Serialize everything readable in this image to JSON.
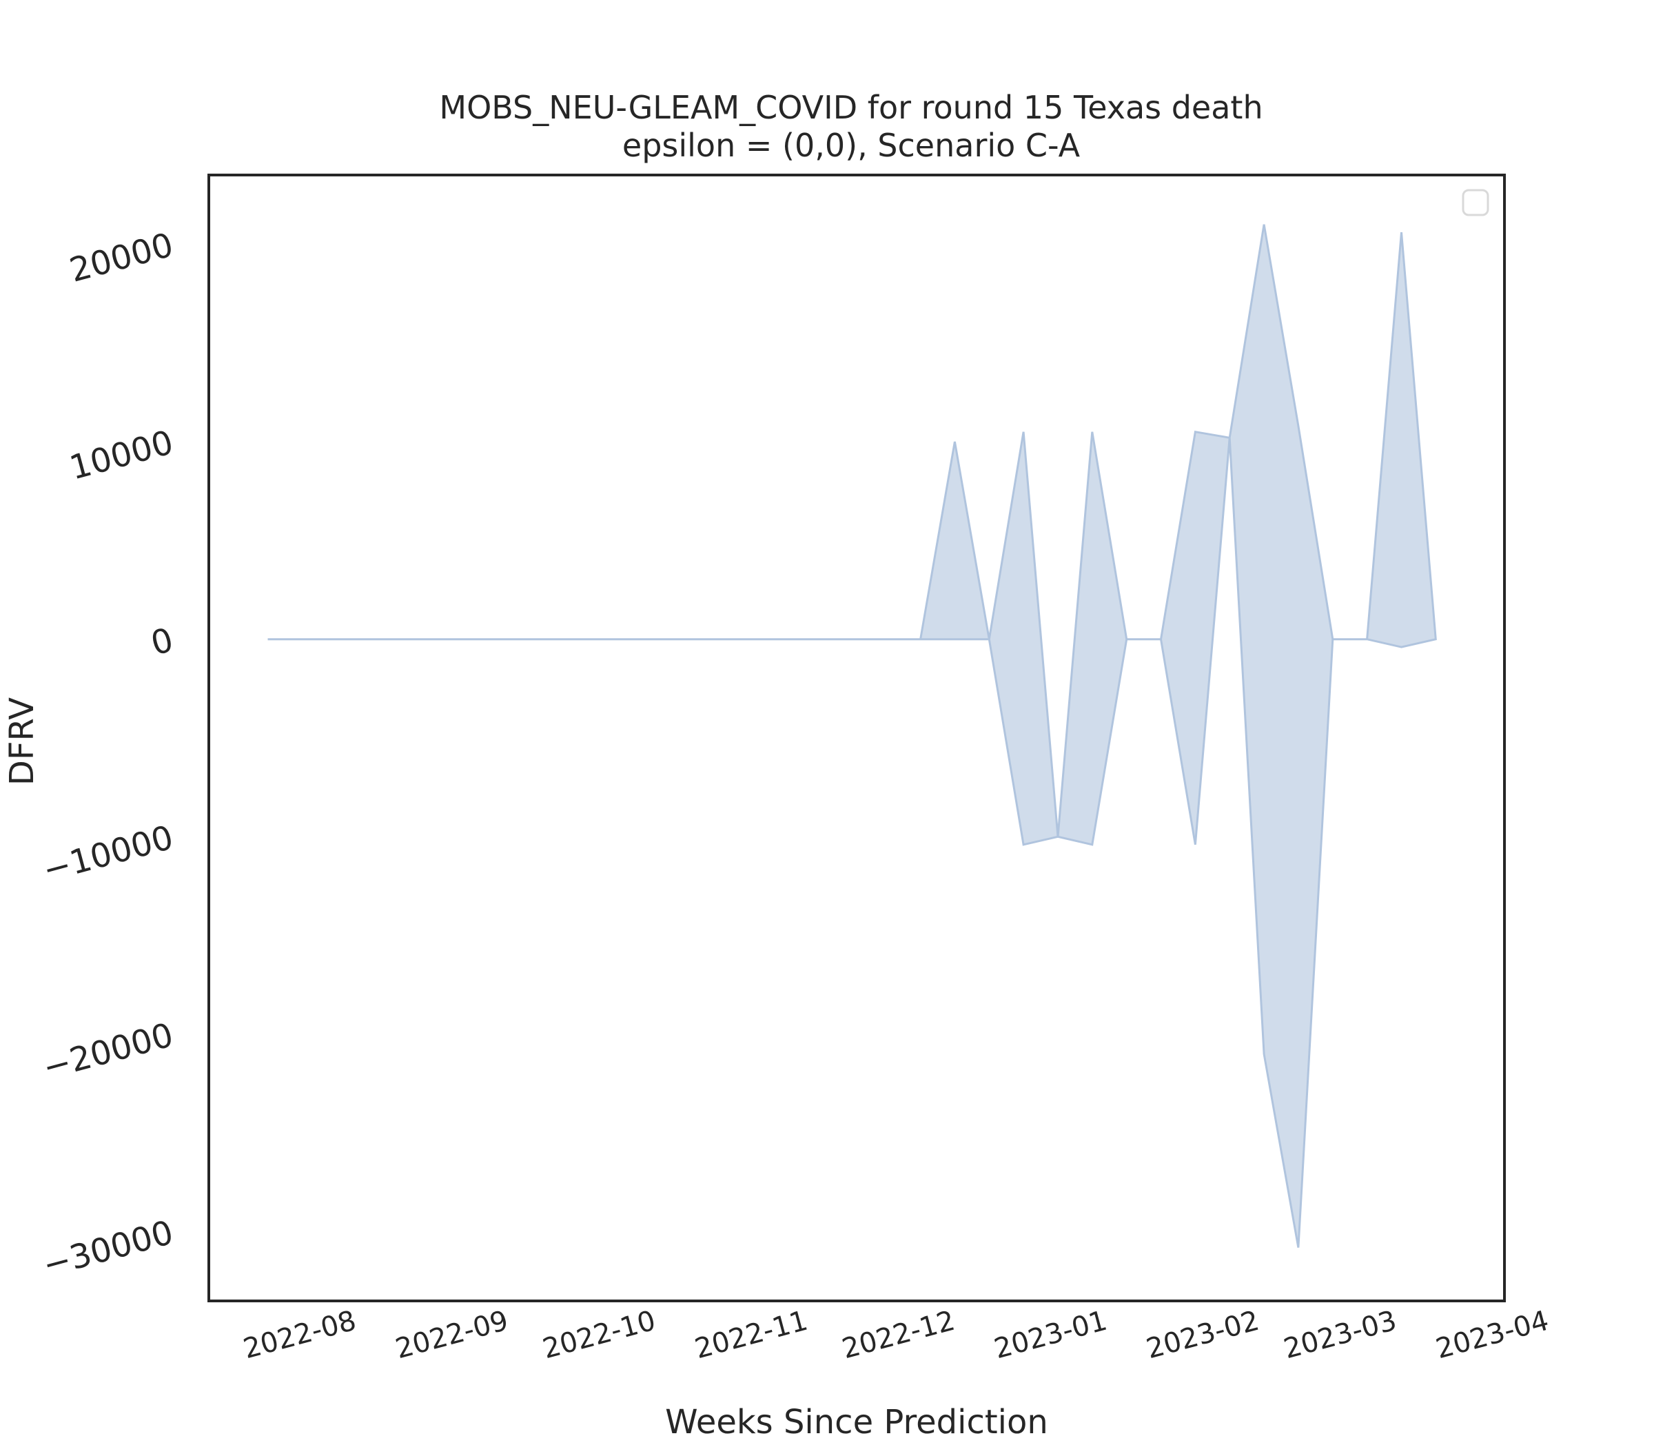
{
  "chart_data": {
    "type": "area",
    "title_line1": "MOBS_NEU-GLEAM_COVID for round 15 Texas death",
    "title_line2": "epsilon = (0,0), Scenario C-A",
    "xlabel": "Weeks Since Prediction",
    "ylabel": "DFRV",
    "x_tick_labels": [
      "2022-08",
      "2022-09",
      "2022-10",
      "2022-11",
      "2022-12",
      "2023-01",
      "2023-02",
      "2023-03",
      "2023-04"
    ],
    "y_tick_labels": [
      "−30000",
      "−20000",
      "−10000",
      "0",
      "10000",
      "20000"
    ],
    "y_ticks": [
      -30000,
      -20000,
      -10000,
      0,
      10000,
      20000
    ],
    "ylim": [
      -33500,
      23500
    ],
    "xlim": [
      "2022-07-13",
      "2023-04-03"
    ],
    "legend": {
      "placement": "top-right",
      "entries": []
    },
    "grid": false,
    "fill_color": "#b0c4de",
    "series": [
      {
        "dates": [
          "2022-07-25",
          "2022-08-01",
          "2022-08-08",
          "2022-08-15",
          "2022-08-22",
          "2022-08-29",
          "2022-09-05",
          "2022-09-12",
          "2022-09-19",
          "2022-09-26",
          "2022-10-03",
          "2022-10-10",
          "2022-10-17",
          "2022-10-24",
          "2022-10-31",
          "2022-11-07",
          "2022-11-14",
          "2022-11-21",
          "2022-11-28",
          "2022-12-05",
          "2022-12-12",
          "2022-12-19",
          "2022-12-26",
          "2023-01-02",
          "2023-01-09",
          "2023-01-16",
          "2023-01-23",
          "2023-01-30",
          "2023-02-06",
          "2023-02-13",
          "2023-02-20",
          "2023-02-27",
          "2023-03-06",
          "2023-03-13",
          "2023-03-20"
        ],
        "lower": [
          0,
          0,
          0,
          0,
          0,
          0,
          0,
          0,
          0,
          0,
          0,
          0,
          0,
          0,
          0,
          0,
          0,
          0,
          0,
          0,
          0,
          0,
          -10400,
          -10000,
          -10400,
          0,
          0,
          -10400,
          10200,
          -21000,
          -30800,
          0,
          0,
          -400,
          0
        ],
        "upper": [
          0,
          0,
          0,
          0,
          0,
          0,
          0,
          0,
          0,
          0,
          0,
          0,
          0,
          0,
          0,
          0,
          0,
          0,
          0,
          0,
          10000,
          0,
          10500,
          -10000,
          10500,
          0,
          0,
          10500,
          10200,
          21000,
          10800,
          0,
          0,
          20600,
          0
        ]
      }
    ]
  }
}
